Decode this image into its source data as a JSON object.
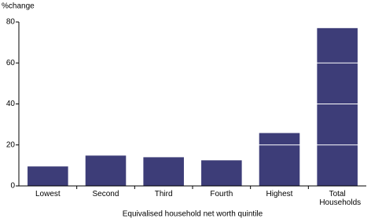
{
  "chart_data": {
    "type": "bar",
    "y_label": "%change",
    "x_label": "Equivalised household net worth quintile",
    "categories": [
      "Lowest",
      "Second",
      "Third",
      "Fourth",
      "Highest",
      "Total Households"
    ],
    "values": [
      9.5,
      14.8,
      14,
      12.5,
      25.8,
      77
    ],
    "color": "#3d3d78",
    "ylim": [
      0,
      80
    ],
    "yticks": [
      0,
      20,
      40,
      60,
      80
    ],
    "grid": true
  }
}
